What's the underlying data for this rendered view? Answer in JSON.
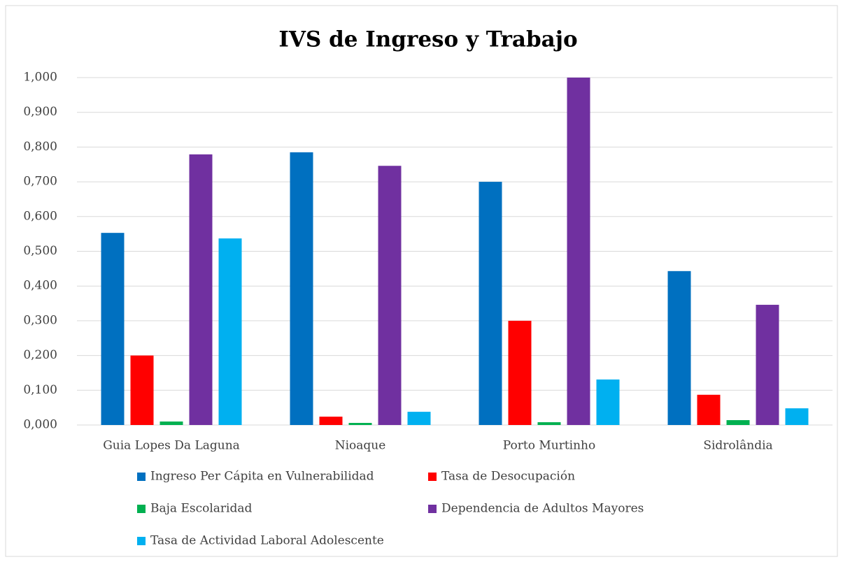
{
  "chart_data": {
    "type": "bar",
    "title": "IVS de Ingreso y Trabajo",
    "categories": [
      "Guia Lopes Da Laguna",
      "Nioaque",
      "Porto Murtinho",
      "Sidrolândia"
    ],
    "series": [
      {
        "name": "Ingreso Per Cápita en Vulnerabilidad",
        "color": "#0070c0",
        "values": [
          0.553,
          0.785,
          0.7,
          0.443
        ]
      },
      {
        "name": "Tasa de Desocupación",
        "color": "#ff0000",
        "values": [
          0.2,
          0.024,
          0.3,
          0.087
        ]
      },
      {
        "name": "Baja Escolaridad",
        "color": "#00b050",
        "values": [
          0.01,
          0.006,
          0.008,
          0.014
        ]
      },
      {
        "name": "Dependencia de Adultos Mayores",
        "color": "#7030a0",
        "values": [
          0.779,
          0.746,
          1.0,
          0.346
        ]
      },
      {
        "name": "Tasa de Actividad Laboral Adolescente",
        "color": "#00b0f0",
        "values": [
          0.537,
          0.038,
          0.131,
          0.048
        ]
      }
    ],
    "ylim": [
      0,
      1
    ],
    "yticks": [
      {
        "value": 0,
        "label": "0,000"
      },
      {
        "value": 0.1,
        "label": "0,100"
      },
      {
        "value": 0.2,
        "label": "0,200"
      },
      {
        "value": 0.3,
        "label": "0,300"
      },
      {
        "value": 0.4,
        "label": "0,400"
      },
      {
        "value": 0.5,
        "label": "0,500"
      },
      {
        "value": 0.6,
        "label": "0,600"
      },
      {
        "value": 0.7,
        "label": "0,700"
      },
      {
        "value": 0.8,
        "label": "0,800"
      },
      {
        "value": 0.9,
        "label": "0,900"
      },
      {
        "value": 1,
        "label": "1,000"
      }
    ],
    "grid": true,
    "legend": "bottom"
  }
}
